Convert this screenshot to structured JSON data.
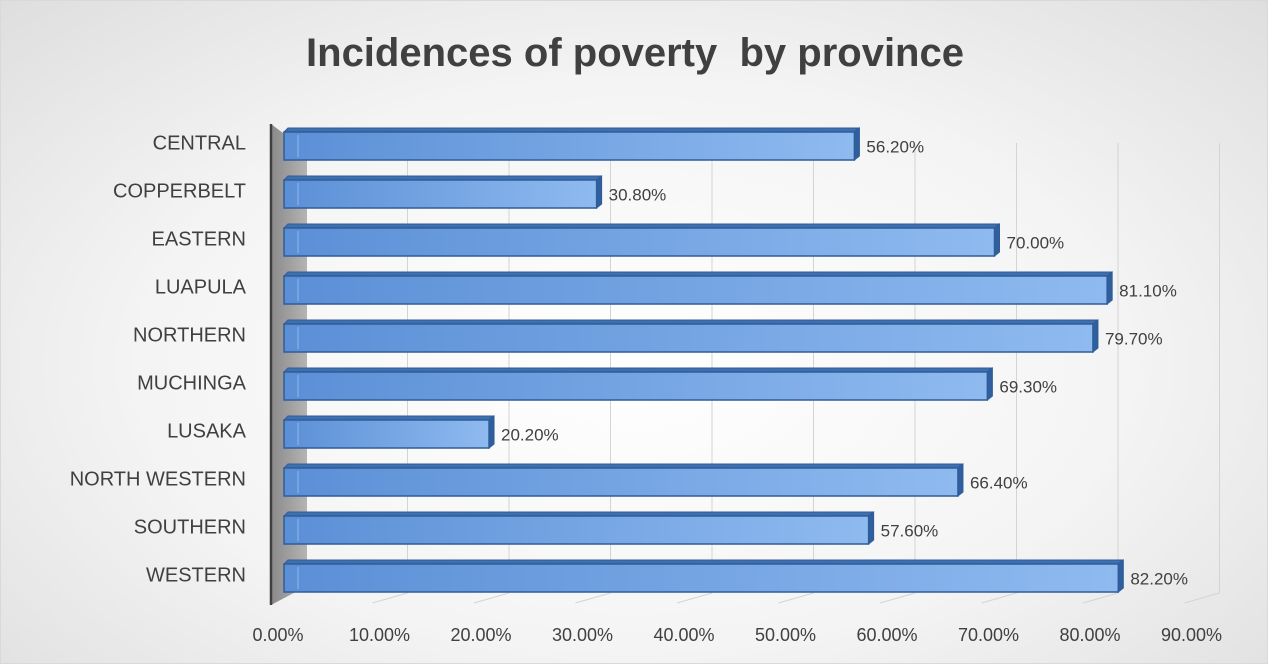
{
  "chart_data": {
    "type": "bar",
    "orientation": "horizontal",
    "style": "3d-clustered-bar",
    "title": "Incidences of poverty  by province",
    "categories": [
      "CENTRAL",
      "COPPERBELT",
      "EASTERN",
      "LUAPULA",
      "NORTHERN",
      "MUCHINGA",
      "LUSAKA",
      "NORTH WESTERN",
      "SOUTHERN",
      "WESTERN"
    ],
    "series": [
      {
        "values": [
          56.2,
          30.8,
          70.0,
          81.1,
          79.7,
          69.3,
          20.2,
          66.4,
          57.6,
          82.2
        ],
        "data_labels": [
          "56.20%",
          "30.80%",
          "70.00%",
          "81.10%",
          "79.70%",
          "69.30%",
          "20.20%",
          "66.40%",
          "57.60%",
          "82.20%"
        ],
        "color": "#5b8fd6"
      }
    ],
    "x_ticks": [
      "0.00%",
      "10.00%",
      "20.00%",
      "30.00%",
      "40.00%",
      "50.00%",
      "60.00%",
      "70.00%",
      "80.00%",
      "90.00%"
    ],
    "xlim": [
      0,
      90
    ],
    "xlabel": "",
    "ylabel": "",
    "grid": true,
    "legend": "none",
    "colors": {
      "bar_front_light": "#8fbaf0",
      "bar_front_dark": "#5b8fd6",
      "bar_edge": "#2f5d96",
      "bar_top": "#3e6fb0",
      "bar_end": "#2f5f9f",
      "axis_wall": "#9c9c9c",
      "gridline": "#d4d4d4",
      "text": "#404040"
    }
  }
}
